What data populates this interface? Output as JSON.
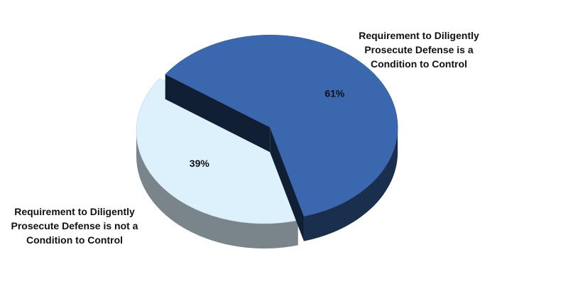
{
  "chart_data": {
    "type": "pie3d",
    "categories": [
      "Requirement to Diligently Prosecute Defense is a Condition to Control",
      "Requirement to Diligently Prosecute Defense is not a Condition to Control"
    ],
    "values": [
      61,
      39
    ],
    "value_labels": [
      "61%",
      "39%"
    ],
    "colors": [
      "#3a67ae",
      "#dcf1fc"
    ]
  }
}
